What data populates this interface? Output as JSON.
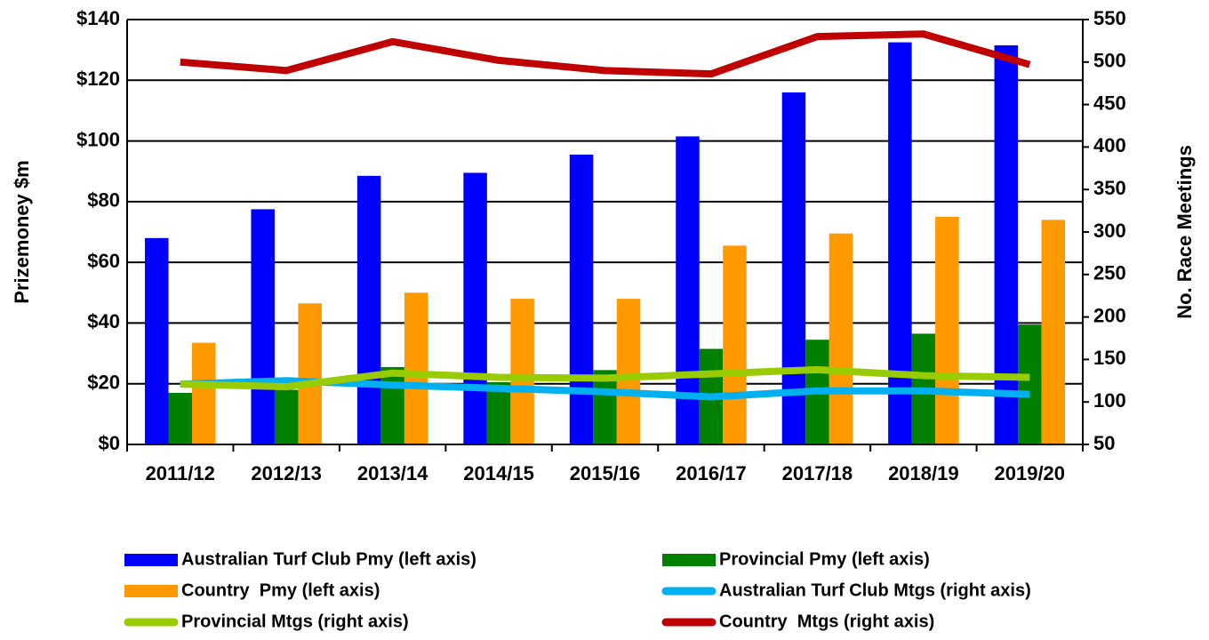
{
  "chart_data": {
    "type": "bar",
    "categories": [
      "2011/12",
      "2012/13",
      "2013/14",
      "2014/15",
      "2015/16",
      "2016/17",
      "2017/18",
      "2018/19",
      "2019/20"
    ],
    "y_label": "Prizemoney $m",
    "y2_label": "No. Race Meetings",
    "ylim": [
      0,
      140
    ],
    "yticks": [
      {
        "value": 0,
        "label": "$0"
      },
      {
        "value": 20,
        "label": "$20"
      },
      {
        "value": 40,
        "label": "$40"
      },
      {
        "value": 60,
        "label": "$60"
      },
      {
        "value": 80,
        "label": "$80"
      },
      {
        "value": 100,
        "label": "$100"
      },
      {
        "value": 120,
        "label": "$120"
      },
      {
        "value": 140,
        "label": "$140"
      }
    ],
    "y2lim": [
      50,
      550
    ],
    "y2ticks": [
      50,
      100,
      150,
      200,
      250,
      300,
      350,
      400,
      450,
      500,
      550
    ],
    "grid": true,
    "series": [
      {
        "name": "Australian Turf Club Pmy (left axis)",
        "type": "bar",
        "color": "#0000ff",
        "values": [
          68,
          77.5,
          88.5,
          89.5,
          95.5,
          101.5,
          116,
          132.5,
          131.5
        ]
      },
      {
        "name": "Provincial Pmy (left axis)",
        "type": "bar",
        "color": "#008000",
        "values": [
          17,
          18,
          25.5,
          20.5,
          24.5,
          31.5,
          34.5,
          36.5,
          39.5
        ]
      },
      {
        "name": "Country  Pmy (left axis)",
        "type": "bar",
        "color": "#ff9900",
        "values": [
          33.5,
          46.5,
          50,
          48,
          48,
          65.5,
          69.5,
          75,
          74
        ]
      },
      {
        "name": "Australian Turf Club Mtgs (right axis)",
        "type": "line",
        "axis": "y2",
        "color": "#00b0f0",
        "values": [
          121,
          125,
          120,
          116,
          112,
          106,
          113,
          113,
          109
        ]
      },
      {
        "name": "Provincial Mtgs (right axis)",
        "type": "line",
        "axis": "y2",
        "color": "#99cc00",
        "values": [
          121,
          118,
          134,
          129,
          128,
          133,
          138,
          131,
          129
        ]
      },
      {
        "name": "Country  Mtgs (right axis)",
        "type": "line",
        "axis": "y2",
        "color": "#c00000",
        "values": [
          500,
          490,
          524,
          502,
          490,
          486,
          530,
          533,
          497
        ]
      }
    ]
  }
}
